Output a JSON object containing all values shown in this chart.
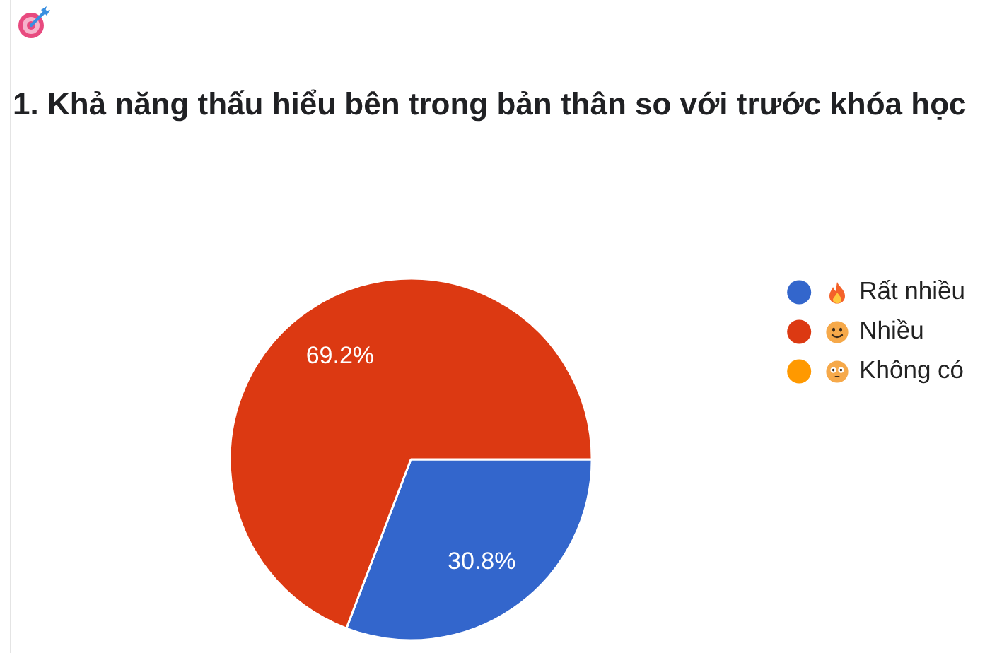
{
  "chart_data": {
    "type": "pie",
    "title": "1. Khả năng thấu hiểu bên trong bản thân so với trước khóa học",
    "categories": [
      "Rất nhiều",
      "Nhiều",
      "Không có"
    ],
    "values": [
      30.8,
      69.2,
      0
    ],
    "colors": [
      "#3366cc",
      "#dc3912",
      "#ff9900"
    ],
    "value_labels": [
      "30.8%",
      "69.2%",
      null
    ],
    "legend": "right"
  }
}
